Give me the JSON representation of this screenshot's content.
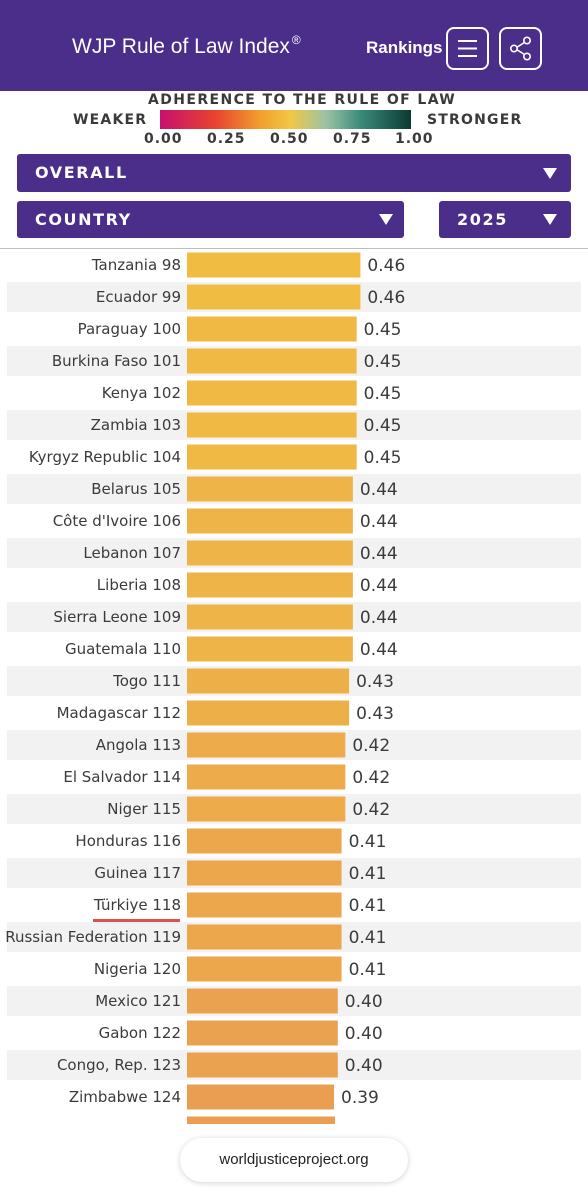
{
  "header": {
    "title": "WJP Rule of Law Index",
    "title_mark": "®",
    "rankings_label": "Rankings",
    "menu_icon": "hamburger-menu-icon",
    "share_icon": "share-icon",
    "background_color": "#4b2d8a"
  },
  "legend": {
    "title": "ADHERENCE TO THE RULE OF LAW",
    "weaker": "WEAKER",
    "stronger": "STRONGER",
    "ticks": [
      "0.00",
      "0.25",
      "0.50",
      "0.75",
      "1.00"
    ]
  },
  "filters": {
    "factor": "OVERALL",
    "dimension": "COUNTRY",
    "year": "2025"
  },
  "chart_data": {
    "type": "bar",
    "orientation": "horizontal",
    "categories": [
      "Tanzania 98",
      "Ecuador 99",
      "Paraguay 100",
      "Burkina Faso 101",
      "Kenya 102",
      "Zambia 103",
      "Kyrgyz Republic 104",
      "Belarus 105",
      "Côte d'Ivoire 106",
      "Lebanon 107",
      "Liberia 108",
      "Sierra Leone 109",
      "Guatemala 110",
      "Togo 111",
      "Madagascar 112",
      "Angola 113",
      "El Salvador 114",
      "Niger 115",
      "Honduras 116",
      "Guinea 117",
      "Türkiye 118",
      "Russian Federation 119",
      "Nigeria 120",
      "Mexico 121",
      "Gabon 122",
      "Congo, Rep. 123",
      "Zimbabwe 124"
    ],
    "values": [
      0.46,
      0.46,
      0.45,
      0.45,
      0.45,
      0.45,
      0.45,
      0.44,
      0.44,
      0.44,
      0.44,
      0.44,
      0.44,
      0.43,
      0.43,
      0.42,
      0.42,
      0.42,
      0.41,
      0.41,
      0.41,
      0.41,
      0.41,
      0.4,
      0.4,
      0.4,
      0.39
    ],
    "value_labels": [
      "0.46",
      "0.46",
      "0.45",
      "0.45",
      "0.45",
      "0.45",
      "0.45",
      "0.44",
      "0.44",
      "0.44",
      "0.44",
      "0.44",
      "0.44",
      "0.43",
      "0.43",
      "0.42",
      "0.42",
      "0.42",
      "0.41",
      "0.41",
      "0.41",
      "0.41",
      "0.41",
      "0.40",
      "0.40",
      "0.40",
      "0.39"
    ],
    "highlighted": "Türkiye 118",
    "bar_colors": {
      "high": "#f0bd42",
      "low": "#ea9e52"
    },
    "highlight_color": "#d9534f",
    "stripe_color": "#f2f2f2",
    "grid": false
  },
  "footer": {
    "source": "worldjusticeproject.org"
  }
}
